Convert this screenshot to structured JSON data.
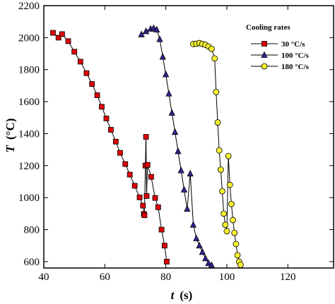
{
  "chart_data": {
    "type": "line",
    "xlabel_symbol": "t",
    "xlabel_unit": "(s)",
    "ylabel_symbol": "T",
    "ylabel_unit": "(°C)",
    "xlim": [
      40,
      135
    ],
    "ylim": [
      560,
      2200
    ],
    "xticks": [
      40,
      60,
      80,
      100,
      120
    ],
    "yticks": [
      600,
      800,
      1000,
      1200,
      1400,
      1600,
      1800,
      2000,
      2200
    ],
    "grid": false,
    "legend": {
      "title": "Cooling rates",
      "position": "top-right"
    },
    "series": [
      {
        "name": "30 °C/s",
        "marker": "square",
        "color": "#e00000",
        "x": [
          43,
          44.8,
          46,
          48,
          50,
          52,
          54,
          55.8,
          57.5,
          59,
          60.5,
          62,
          63.6,
          65,
          66.7,
          68.2,
          69.8,
          71.4,
          72.5,
          72.8,
          73,
          73.3,
          73.5,
          73.7,
          74,
          75.2,
          76.5,
          77.5,
          78.6,
          79.6,
          80.3
        ],
        "y": [
          2030,
          2000,
          2022,
          1978,
          1912,
          1850,
          1778,
          1710,
          1640,
          1568,
          1495,
          1424,
          1350,
          1280,
          1210,
          1144,
          1074,
          1002,
          950,
          898,
          890,
          1200,
          1380,
          1010,
          1205,
          1130,
          998,
          940,
          800,
          700,
          600
        ]
      },
      {
        "name": "100 °C/s",
        "marker": "triangle",
        "color": "#3a2090",
        "x": [
          72,
          73.5,
          75,
          76,
          77,
          78,
          79,
          80,
          81,
          82,
          83,
          84,
          85,
          86,
          87,
          88,
          89,
          90,
          91,
          92,
          93,
          94,
          95
        ],
        "y": [
          2020,
          2040,
          2055,
          2060,
          2050,
          1990,
          1880,
          1770,
          1650,
          1530,
          1410,
          1290,
          1170,
          1050,
          930,
          1150,
          830,
          745,
          700,
          660,
          620,
          590,
          578
        ]
      },
      {
        "name": "180 °C/s",
        "marker": "circle",
        "color": "#f5f032",
        "x": [
          89,
          90,
          91,
          92,
          93,
          94,
          95,
          96,
          96.5,
          97,
          97.5,
          98,
          98.5,
          99,
          99.5,
          100,
          100.5,
          101,
          101.5,
          102,
          102.5,
          103,
          103.5,
          104,
          104.5
        ],
        "y": [
          1960,
          1962,
          1966,
          1960,
          1955,
          1945,
          1930,
          1870,
          1660,
          1470,
          1295,
          1175,
          1040,
          900,
          830,
          790,
          1260,
          1080,
          960,
          860,
          780,
          710,
          640,
          600,
          580
        ]
      }
    ]
  }
}
